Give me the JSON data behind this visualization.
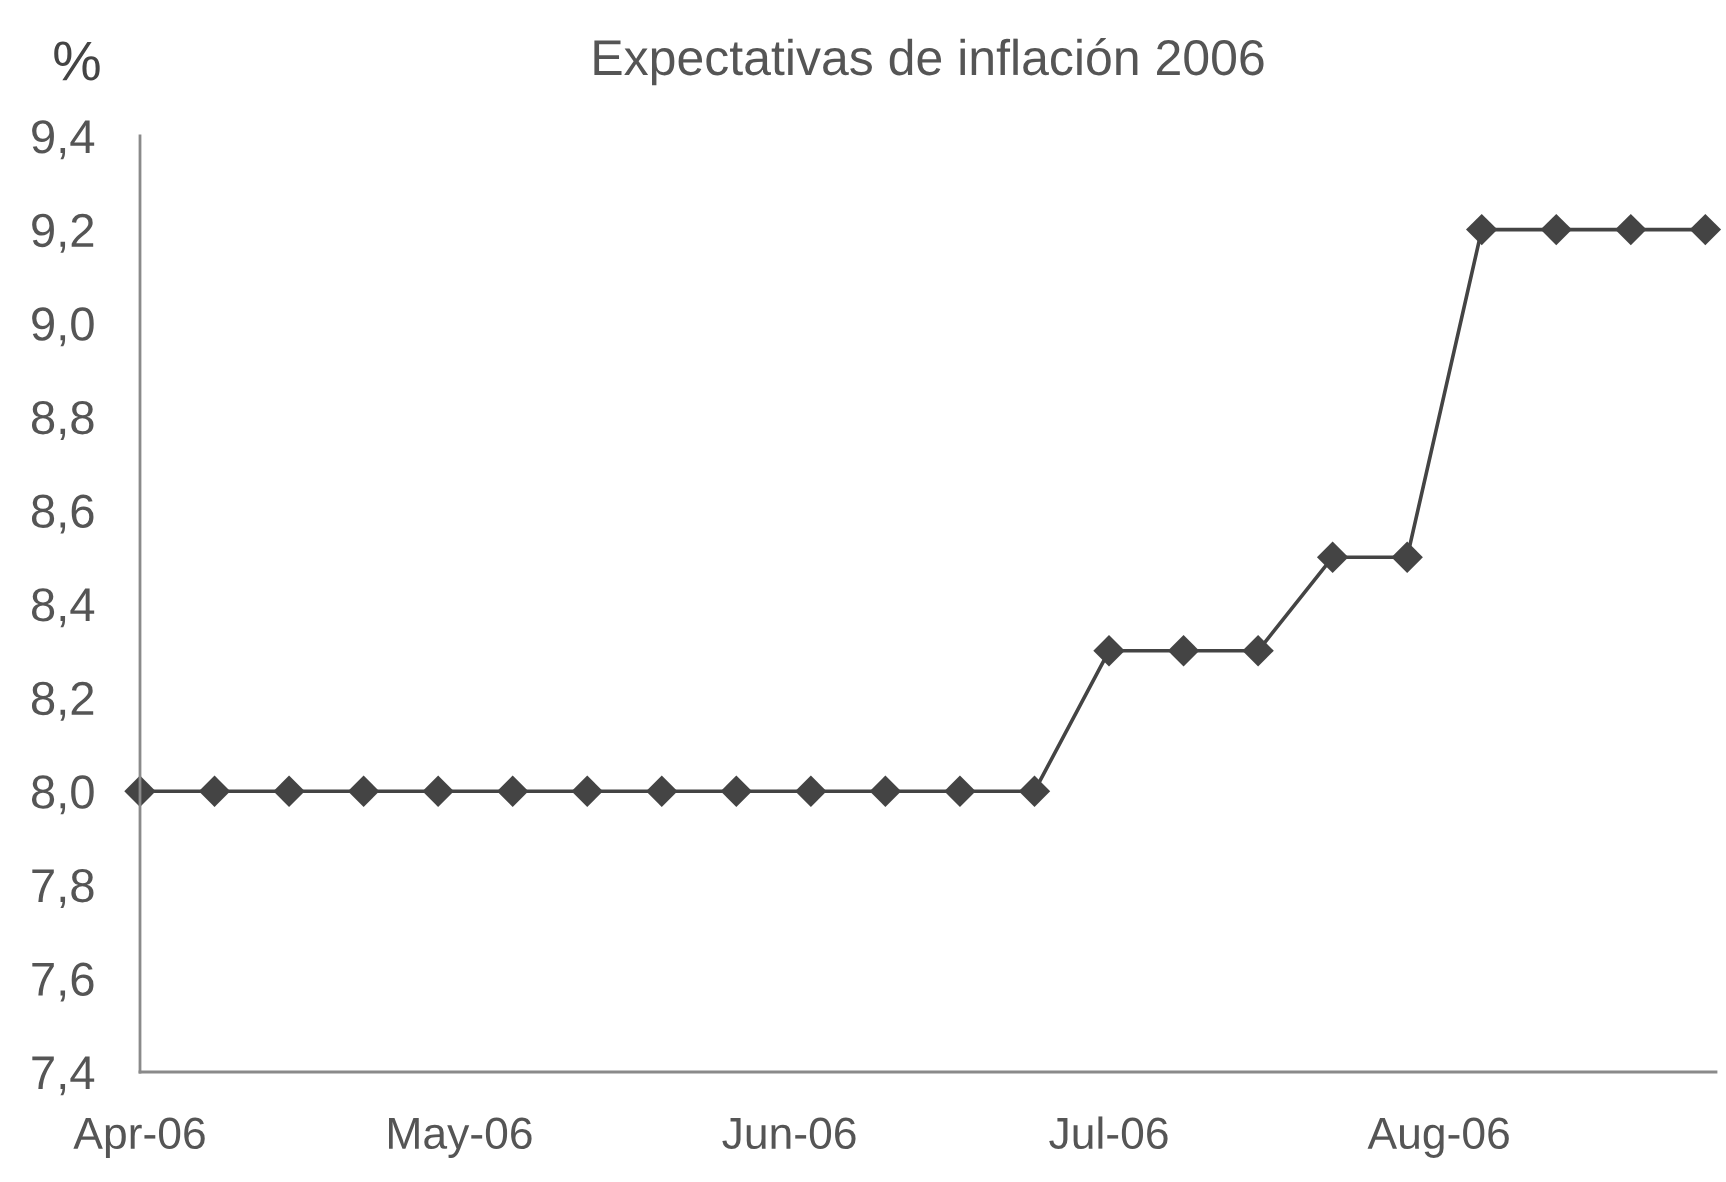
{
  "chart_data": {
    "type": "line",
    "title": "Expectativas de inflación 2006",
    "ylabel": "%",
    "x": [
      "2006-04-01",
      "2006-04-08",
      "2006-04-15",
      "2006-04-22",
      "2006-04-29",
      "2006-05-06",
      "2006-05-13",
      "2006-05-20",
      "2006-05-27",
      "2006-06-03",
      "2006-06-10",
      "2006-06-17",
      "2006-06-24",
      "2006-07-01",
      "2006-07-08",
      "2006-07-15",
      "2006-07-22",
      "2006-07-29",
      "2006-08-05",
      "2006-08-12",
      "2006-08-19",
      "2006-08-26"
    ],
    "series": [
      {
        "color": "#444444",
        "values": [
          8.0,
          8.0,
          8.0,
          8.0,
          8.0,
          8.0,
          8.0,
          8.0,
          8.0,
          8.0,
          8.0,
          8.0,
          8.0,
          8.3,
          8.3,
          8.3,
          8.5,
          8.5,
          9.2,
          9.2,
          9.2,
          9.2
        ]
      }
    ],
    "xlim": [
      "2006-04-01",
      "2006-08-27"
    ],
    "xticks": [
      {
        "value": "2006-04-01",
        "label": "Apr-06"
      },
      {
        "value": "2006-05-01",
        "label": "May-06"
      },
      {
        "value": "2006-06-01",
        "label": "Jun-06"
      },
      {
        "value": "2006-07-01",
        "label": "Jul-06"
      },
      {
        "value": "2006-08-01",
        "label": "Aug-06"
      }
    ],
    "ylim": [
      7.4,
      9.4
    ],
    "yticks": [
      {
        "value": 7.4,
        "label": "7,4"
      },
      {
        "value": 7.6,
        "label": "7,6"
      },
      {
        "value": 7.8,
        "label": "7,8"
      },
      {
        "value": 8.0,
        "label": "8,0"
      },
      {
        "value": 8.2,
        "label": "8,2"
      },
      {
        "value": 8.4,
        "label": "8,4"
      },
      {
        "value": 8.6,
        "label": "8,6"
      },
      {
        "value": 8.8,
        "label": "8,8"
      },
      {
        "value": 9.0,
        "label": "9,0"
      },
      {
        "value": 9.2,
        "label": "9,2"
      },
      {
        "value": 9.4,
        "label": "9,4"
      }
    ],
    "marker": "diamond",
    "line_style": "solid"
  }
}
